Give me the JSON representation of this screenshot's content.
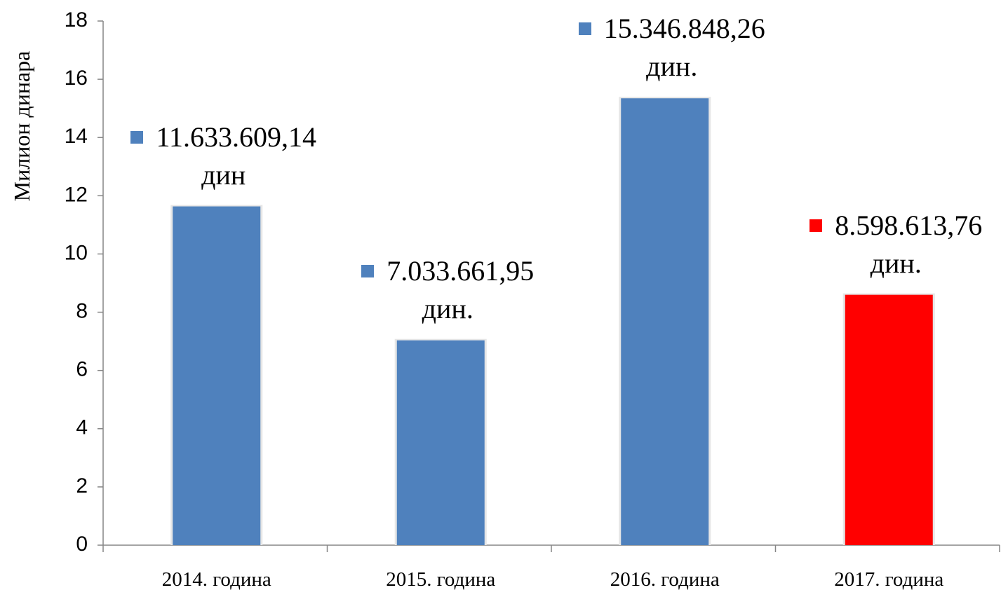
{
  "chart_data": {
    "type": "bar",
    "y_axis_label": "Милион динара",
    "categories": [
      "2014. година",
      "2015. година",
      "2016. година",
      "2017. година"
    ],
    "values": [
      11.63360914,
      7.03366195,
      15.34684826,
      8.59861376
    ],
    "value_labels": [
      "11.633.609,14 дин",
      "7.033.661,95 дин.",
      "15.346.848,26 дин.",
      "8.598.613,76 дин."
    ],
    "colors": [
      "#4f81bd",
      "#4f81bd",
      "#4f81bd",
      "#ff0000"
    ],
    "ylim": [
      0,
      18
    ],
    "yticks": [
      0,
      2,
      4,
      6,
      8,
      10,
      12,
      14,
      16,
      18
    ],
    "grid": false
  }
}
